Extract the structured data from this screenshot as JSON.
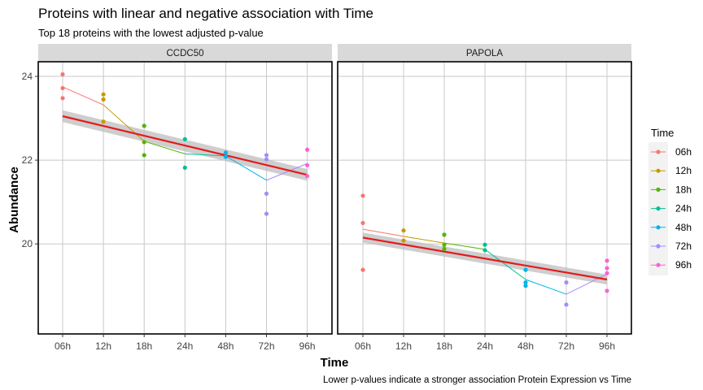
{
  "chart_data": {
    "type": "scatter",
    "title": "Proteins with linear and negative association with Time",
    "subtitle": "Top 18 proteins with the lowest adjusted p-value",
    "caption": "Lower p-values indicate a stronger association Protein Expression vs Time",
    "xlabel": "Time",
    "ylabel": "Abundance",
    "categories": [
      "06h",
      "12h",
      "18h",
      "24h",
      "48h",
      "72h",
      "96h"
    ],
    "yticks": [
      20,
      22,
      24
    ],
    "ylim": [
      17.85,
      24.35
    ],
    "grid": true,
    "legend": {
      "title": "Time",
      "placement": "right",
      "entries": [
        "06h",
        "12h",
        "18h",
        "24h",
        "48h",
        "72h",
        "96h"
      ]
    },
    "colors": {
      "06h": "#F8766D",
      "12h": "#C49A00",
      "18h": "#53B400",
      "24h": "#00C094",
      "48h": "#00B6EB",
      "72h": "#A58AFF",
      "96h": "#FB61D7",
      "fit": "#E41A1C",
      "ribbon": "#BDBDBD"
    },
    "panels": [
      {
        "name": "CCDC50",
        "points": [
          {
            "time": "06h",
            "values": [
              24.05,
              23.72,
              23.48
            ]
          },
          {
            "time": "12h",
            "values": [
              23.57,
              23.45,
              22.92
            ]
          },
          {
            "time": "18h",
            "values": [
              22.82,
              22.43,
              22.12
            ]
          },
          {
            "time": "24h",
            "values": [
              22.5,
              21.82
            ]
          },
          {
            "time": "48h",
            "values": [
              22.18,
              22.08
            ]
          },
          {
            "time": "72h",
            "values": [
              22.12,
              22.02,
              21.2,
              20.72
            ]
          },
          {
            "time": "96h",
            "values": [
              22.25,
              21.88,
              21.62
            ]
          }
        ],
        "mean_line": [
          23.75,
          23.32,
          22.45,
          22.15,
          22.1,
          21.52,
          21.92
        ],
        "fit": {
          "start": 23.05,
          "end": 21.65,
          "band": 0.14
        }
      },
      {
        "name": "PAPOLA",
        "points": [
          {
            "time": "06h",
            "values": [
              21.15,
              20.5,
              19.38
            ]
          },
          {
            "time": "12h",
            "values": [
              20.32,
              20.08
            ]
          },
          {
            "time": "18h",
            "values": [
              20.22,
              19.98,
              19.88
            ]
          },
          {
            "time": "24h",
            "values": [
              19.98,
              19.85
            ]
          },
          {
            "time": "48h",
            "values": [
              19.38,
              19.08,
              19.0
            ]
          },
          {
            "time": "72h",
            "values": [
              19.08,
              18.55
            ]
          },
          {
            "time": "96h",
            "values": [
              19.6,
              19.42,
              19.3,
              18.88
            ]
          }
        ],
        "mean_line": [
          20.35,
          20.18,
          20.02,
          19.87,
          19.15,
          18.8,
          19.28
        ],
        "fit": {
          "start": 20.15,
          "end": 19.15,
          "band": 0.12
        }
      }
    ]
  }
}
